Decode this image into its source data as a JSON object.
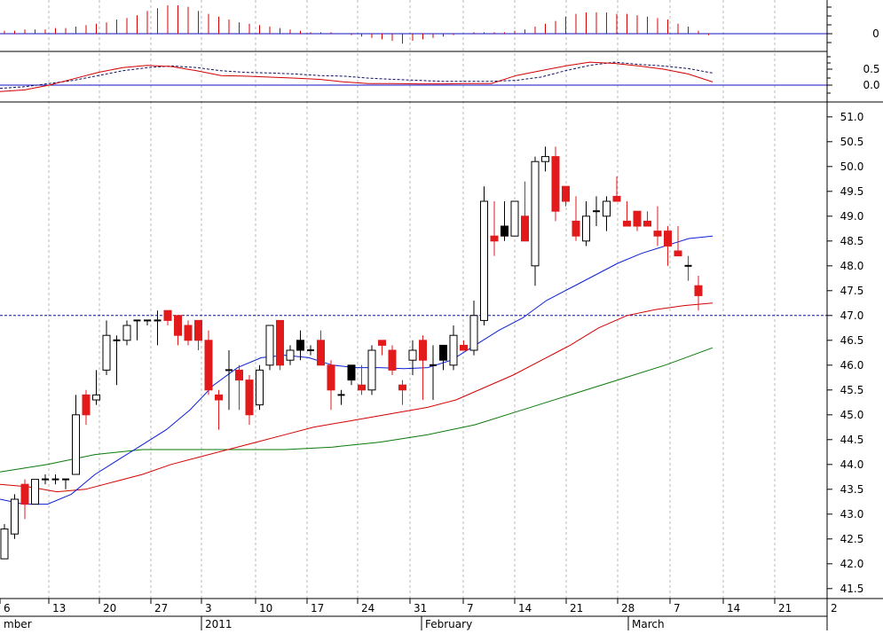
{
  "chart_data": {
    "type": "candlestick",
    "colors": {
      "up_body": "#ffffff",
      "down_body": "#e31a1c",
      "doji_dark": "#000000",
      "ma_short": "#0a1fd6",
      "ma_mid": "#d40000",
      "ma_long": "#0a7a0a",
      "grid": "#b9b9b9",
      "ref_line": "#1010a0"
    },
    "x_ticks": [
      "6",
      "13",
      "20",
      "27",
      "3",
      "10",
      "17",
      "24",
      "31",
      "7",
      "14",
      "21",
      "28",
      "7",
      "14",
      "21",
      "2"
    ],
    "x_months": [
      "mber",
      "2011",
      "February",
      "March"
    ],
    "price_panel": {
      "ylim": [
        41.3,
        51.3
      ],
      "yticks": [
        "51.0",
        "50.5",
        "50.0",
        "49.5",
        "49.0",
        "48.5",
        "48.0",
        "47.5",
        "47.0",
        "46.5",
        "46.0",
        "45.5",
        "45.0",
        "44.5",
        "44.0",
        "43.5",
        "43.0",
        "42.5",
        "42.0",
        "41.5"
      ],
      "reference_level": 47.0,
      "candles": [
        {
          "o": 42.1,
          "h": 42.8,
          "l": 42.1,
          "c": 42.7,
          "d": "up"
        },
        {
          "o": 42.6,
          "h": 43.4,
          "l": 42.5,
          "c": 43.3,
          "d": "up"
        },
        {
          "o": 43.6,
          "h": 43.7,
          "l": 42.9,
          "c": 43.2,
          "d": "down"
        },
        {
          "o": 43.2,
          "h": 43.7,
          "l": 43.2,
          "c": 43.7,
          "d": "up"
        },
        {
          "o": 43.7,
          "h": 43.8,
          "l": 43.6,
          "c": 43.7,
          "d": "doji"
        },
        {
          "o": 43.7,
          "h": 43.8,
          "l": 43.6,
          "c": 43.7,
          "d": "doji"
        },
        {
          "o": 43.7,
          "h": 43.7,
          "l": 43.5,
          "c": 43.7,
          "d": "doji"
        },
        {
          "o": 43.8,
          "h": 45.4,
          "l": 43.8,
          "c": 45.0,
          "d": "up"
        },
        {
          "o": 45.0,
          "h": 45.5,
          "l": 44.8,
          "c": 45.4,
          "d": "down"
        },
        {
          "o": 45.3,
          "h": 45.9,
          "l": 45.2,
          "c": 45.4,
          "d": "up"
        },
        {
          "o": 45.9,
          "h": 46.9,
          "l": 45.8,
          "c": 46.6,
          "d": "up"
        },
        {
          "o": 46.5,
          "h": 46.6,
          "l": 45.6,
          "c": 46.5,
          "d": "doji"
        },
        {
          "o": 46.5,
          "h": 46.9,
          "l": 46.4,
          "c": 46.8,
          "d": "up"
        },
        {
          "o": 46.9,
          "h": 46.9,
          "l": 46.5,
          "c": 46.9,
          "d": "up"
        },
        {
          "o": 46.8,
          "h": 46.9,
          "l": 46.8,
          "c": 46.9,
          "d": "doji"
        },
        {
          "o": 46.9,
          "h": 47.1,
          "l": 46.4,
          "c": 46.9,
          "d": "doji"
        },
        {
          "o": 47.1,
          "h": 47.1,
          "l": 46.8,
          "c": 46.9,
          "d": "down"
        },
        {
          "o": 47.0,
          "h": 47.0,
          "l": 46.4,
          "c": 46.6,
          "d": "down"
        },
        {
          "o": 46.8,
          "h": 46.9,
          "l": 46.4,
          "c": 46.5,
          "d": "down"
        },
        {
          "o": 46.9,
          "h": 46.9,
          "l": 46.3,
          "c": 46.5,
          "d": "down"
        },
        {
          "o": 46.5,
          "h": 46.7,
          "l": 45.4,
          "c": 45.5,
          "d": "down"
        },
        {
          "o": 45.4,
          "h": 45.5,
          "l": 44.7,
          "c": 45.3,
          "d": "down"
        },
        {
          "o": 45.9,
          "h": 46.3,
          "l": 45.1,
          "c": 45.9,
          "d": "doji"
        },
        {
          "o": 45.9,
          "h": 46.0,
          "l": 45.1,
          "c": 45.7,
          "d": "down"
        },
        {
          "o": 45.7,
          "h": 45.8,
          "l": 44.8,
          "c": 45.0,
          "d": "down"
        },
        {
          "o": 45.2,
          "h": 46.0,
          "l": 45.1,
          "c": 45.9,
          "d": "up"
        },
        {
          "o": 46.0,
          "h": 46.8,
          "l": 45.9,
          "c": 46.8,
          "d": "up"
        },
        {
          "o": 46.9,
          "h": 46.9,
          "l": 45.9,
          "c": 46.0,
          "d": "down"
        },
        {
          "o": 46.1,
          "h": 46.4,
          "l": 46.0,
          "c": 46.3,
          "d": "up"
        },
        {
          "o": 46.5,
          "h": 46.7,
          "l": 46.1,
          "c": 46.3,
          "d": "dark"
        },
        {
          "o": 46.3,
          "h": 46.4,
          "l": 46.2,
          "c": 46.3,
          "d": "doji"
        },
        {
          "o": 46.5,
          "h": 46.7,
          "l": 46.0,
          "c": 46.0,
          "d": "down"
        },
        {
          "o": 46.0,
          "h": 46.1,
          "l": 45.1,
          "c": 45.5,
          "d": "down"
        },
        {
          "o": 45.4,
          "h": 45.5,
          "l": 45.2,
          "c": 45.4,
          "d": "doji"
        },
        {
          "o": 45.7,
          "h": 46.0,
          "l": 45.6,
          "c": 46.0,
          "d": "dark"
        },
        {
          "o": 45.6,
          "h": 46.0,
          "l": 45.4,
          "c": 45.5,
          "d": "down"
        },
        {
          "o": 45.5,
          "h": 46.4,
          "l": 45.4,
          "c": 46.3,
          "d": "up"
        },
        {
          "o": 46.5,
          "h": 46.5,
          "l": 46.2,
          "c": 46.4,
          "d": "down"
        },
        {
          "o": 46.3,
          "h": 46.4,
          "l": 45.8,
          "c": 45.9,
          "d": "down"
        },
        {
          "o": 45.6,
          "h": 45.7,
          "l": 45.2,
          "c": 45.5,
          "d": "down"
        },
        {
          "o": 46.1,
          "h": 46.5,
          "l": 45.8,
          "c": 46.3,
          "d": "up"
        },
        {
          "o": 46.5,
          "h": 46.6,
          "l": 45.3,
          "c": 46.1,
          "d": "down"
        },
        {
          "o": 46.0,
          "h": 46.4,
          "l": 45.3,
          "c": 46.0,
          "d": "doji"
        },
        {
          "o": 46.1,
          "h": 46.4,
          "l": 45.9,
          "c": 46.4,
          "d": "dark"
        },
        {
          "o": 46.0,
          "h": 46.8,
          "l": 45.9,
          "c": 46.6,
          "d": "up"
        },
        {
          "o": 46.4,
          "h": 46.5,
          "l": 46.3,
          "c": 46.3,
          "d": "down"
        },
        {
          "o": 46.3,
          "h": 47.3,
          "l": 46.2,
          "c": 47.0,
          "d": "up"
        },
        {
          "o": 46.9,
          "h": 49.6,
          "l": 46.8,
          "c": 49.3,
          "d": "up"
        },
        {
          "o": 48.6,
          "h": 49.3,
          "l": 48.2,
          "c": 48.5,
          "d": "down"
        },
        {
          "o": 48.6,
          "h": 49.3,
          "l": 48.5,
          "c": 48.8,
          "d": "dark"
        },
        {
          "o": 48.6,
          "h": 49.3,
          "l": 48.6,
          "c": 49.3,
          "d": "up"
        },
        {
          "o": 49.0,
          "h": 49.7,
          "l": 48.5,
          "c": 48.5,
          "d": "down"
        },
        {
          "o": 48.0,
          "h": 50.2,
          "l": 47.6,
          "c": 50.1,
          "d": "up"
        },
        {
          "o": 50.1,
          "h": 50.4,
          "l": 49.9,
          "c": 50.2,
          "d": "up"
        },
        {
          "o": 50.2,
          "h": 50.4,
          "l": 48.9,
          "c": 49.1,
          "d": "down"
        },
        {
          "o": 49.6,
          "h": 49.6,
          "l": 49.2,
          "c": 49.3,
          "d": "down"
        },
        {
          "o": 48.9,
          "h": 49.4,
          "l": 48.5,
          "c": 48.6,
          "d": "down"
        },
        {
          "o": 48.5,
          "h": 49.3,
          "l": 48.4,
          "c": 49.0,
          "d": "up"
        },
        {
          "o": 49.1,
          "h": 49.4,
          "l": 48.8,
          "c": 49.1,
          "d": "doji"
        },
        {
          "o": 49.0,
          "h": 49.4,
          "l": 48.7,
          "c": 49.3,
          "d": "up"
        },
        {
          "o": 49.4,
          "h": 49.8,
          "l": 49.3,
          "c": 49.3,
          "d": "down"
        },
        {
          "o": 48.9,
          "h": 49.3,
          "l": 48.8,
          "c": 48.8,
          "d": "down"
        },
        {
          "o": 49.1,
          "h": 49.1,
          "l": 48.7,
          "c": 48.8,
          "d": "down"
        },
        {
          "o": 48.9,
          "h": 49.1,
          "l": 48.8,
          "c": 48.8,
          "d": "down"
        },
        {
          "o": 48.7,
          "h": 49.2,
          "l": 48.4,
          "c": 48.6,
          "d": "down"
        },
        {
          "o": 48.7,
          "h": 48.8,
          "l": 48.0,
          "c": 48.4,
          "d": "down"
        },
        {
          "o": 48.3,
          "h": 48.8,
          "l": 48.2,
          "c": 48.2,
          "d": "down"
        },
        {
          "o": 48.0,
          "h": 48.2,
          "l": 47.7,
          "c": 48.0,
          "d": "down"
        },
        {
          "o": 47.6,
          "h": 47.8,
          "l": 47.1,
          "c": 47.4,
          "d": "down"
        }
      ],
      "ma_short": [
        [
          0,
          43.3
        ],
        [
          5,
          43.2
        ],
        [
          10,
          43.2
        ],
        [
          15,
          43.4
        ],
        [
          20,
          43.8
        ],
        [
          25,
          44.1
        ],
        [
          30,
          44.4
        ],
        [
          35,
          44.7
        ],
        [
          40,
          45.1
        ],
        [
          45,
          45.6
        ],
        [
          50,
          45.95
        ],
        [
          55,
          46.15
        ],
        [
          60,
          46.2
        ],
        [
          65,
          46.15
        ],
        [
          70,
          46.0
        ],
        [
          75,
          45.95
        ],
        [
          80,
          45.95
        ],
        [
          85,
          45.93
        ],
        [
          90,
          45.95
        ],
        [
          95,
          46.1
        ],
        [
          100,
          46.4
        ],
        [
          105,
          46.7
        ],
        [
          110,
          46.95
        ],
        [
          115,
          47.3
        ],
        [
          120,
          47.55
        ],
        [
          125,
          47.8
        ],
        [
          130,
          48.05
        ],
        [
          135,
          48.25
        ],
        [
          140,
          48.4
        ],
        [
          145,
          48.55
        ],
        [
          150,
          48.6
        ]
      ],
      "ma_mid": [
        [
          0,
          43.6
        ],
        [
          5,
          43.55
        ],
        [
          10,
          43.45
        ],
        [
          15,
          43.5
        ],
        [
          20,
          43.65
        ],
        [
          25,
          43.8
        ],
        [
          30,
          44.0
        ],
        [
          35,
          44.15
        ],
        [
          40,
          44.3
        ],
        [
          45,
          44.45
        ],
        [
          50,
          44.6
        ],
        [
          55,
          44.75
        ],
        [
          60,
          44.85
        ],
        [
          65,
          44.95
        ],
        [
          70,
          45.05
        ],
        [
          75,
          45.15
        ],
        [
          80,
          45.3
        ],
        [
          85,
          45.55
        ],
        [
          90,
          45.8
        ],
        [
          95,
          46.1
        ],
        [
          100,
          46.4
        ],
        [
          105,
          46.75
        ],
        [
          110,
          47.0
        ],
        [
          115,
          47.12
        ],
        [
          120,
          47.2
        ],
        [
          125,
          47.25
        ]
      ],
      "ma_long": [
        [
          0,
          43.85
        ],
        [
          10,
          44.0
        ],
        [
          20,
          44.2
        ],
        [
          30,
          44.3
        ],
        [
          40,
          44.3
        ],
        [
          50,
          44.3
        ],
        [
          60,
          44.3
        ],
        [
          70,
          44.35
        ],
        [
          80,
          44.45
        ],
        [
          90,
          44.6
        ],
        [
          100,
          44.8
        ],
        [
          110,
          45.1
        ],
        [
          120,
          45.4
        ],
        [
          130,
          45.7
        ],
        [
          140,
          46.0
        ],
        [
          150,
          46.35
        ]
      ]
    },
    "indicator_top": {
      "yticks": [
        "0"
      ],
      "bars": [
        0.1,
        0.1,
        0.15,
        0.15,
        0.15,
        0.2,
        0.2,
        0.25,
        0.3,
        0.35,
        0.4,
        0.5,
        0.55,
        0.65,
        0.8,
        0.9,
        1.0,
        1.0,
        0.95,
        0.8,
        0.7,
        0.6,
        0.5,
        0.4,
        0.35,
        0.3,
        0.25,
        0.2,
        0.15,
        0.1,
        0.05,
        0.05,
        0.05,
        0.0,
        -0.05,
        -0.1,
        -0.15,
        -0.2,
        -0.25,
        -0.35,
        -0.25,
        -0.2,
        -0.15,
        -0.1,
        -0.05,
        0.0,
        0.05,
        0.05,
        0.05,
        0.05,
        0.1,
        0.15,
        0.25,
        0.35,
        0.45,
        0.6,
        0.7,
        0.75,
        0.75,
        0.75,
        0.7,
        0.7,
        0.65,
        0.6,
        0.55,
        0.5,
        0.35,
        0.25,
        0.1,
        -0.05
      ]
    },
    "indicator_mid": {
      "yticks": [
        "0.5",
        "0.0"
      ],
      "signal": [
        -0.1,
        -0.05,
        0.05,
        0.15,
        0.3,
        0.45,
        0.55,
        0.6,
        0.55,
        0.45,
        0.4,
        0.38,
        0.35,
        0.3,
        0.28,
        0.22,
        0.18,
        0.15,
        0.12,
        0.12,
        0.12,
        0.15,
        0.25,
        0.45,
        0.62,
        0.72,
        0.65,
        0.6,
        0.52,
        0.38
      ],
      "macd": [
        -0.2,
        -0.15,
        0.0,
        0.2,
        0.4,
        0.55,
        0.62,
        0.58,
        0.45,
        0.3,
        0.28,
        0.25,
        0.22,
        0.18,
        0.1,
        0.05,
        0.05,
        0.04,
        0.04,
        0.05,
        0.05,
        0.3,
        0.45,
        0.6,
        0.72,
        0.68,
        0.6,
        0.5,
        0.35,
        0.1
      ]
    }
  }
}
